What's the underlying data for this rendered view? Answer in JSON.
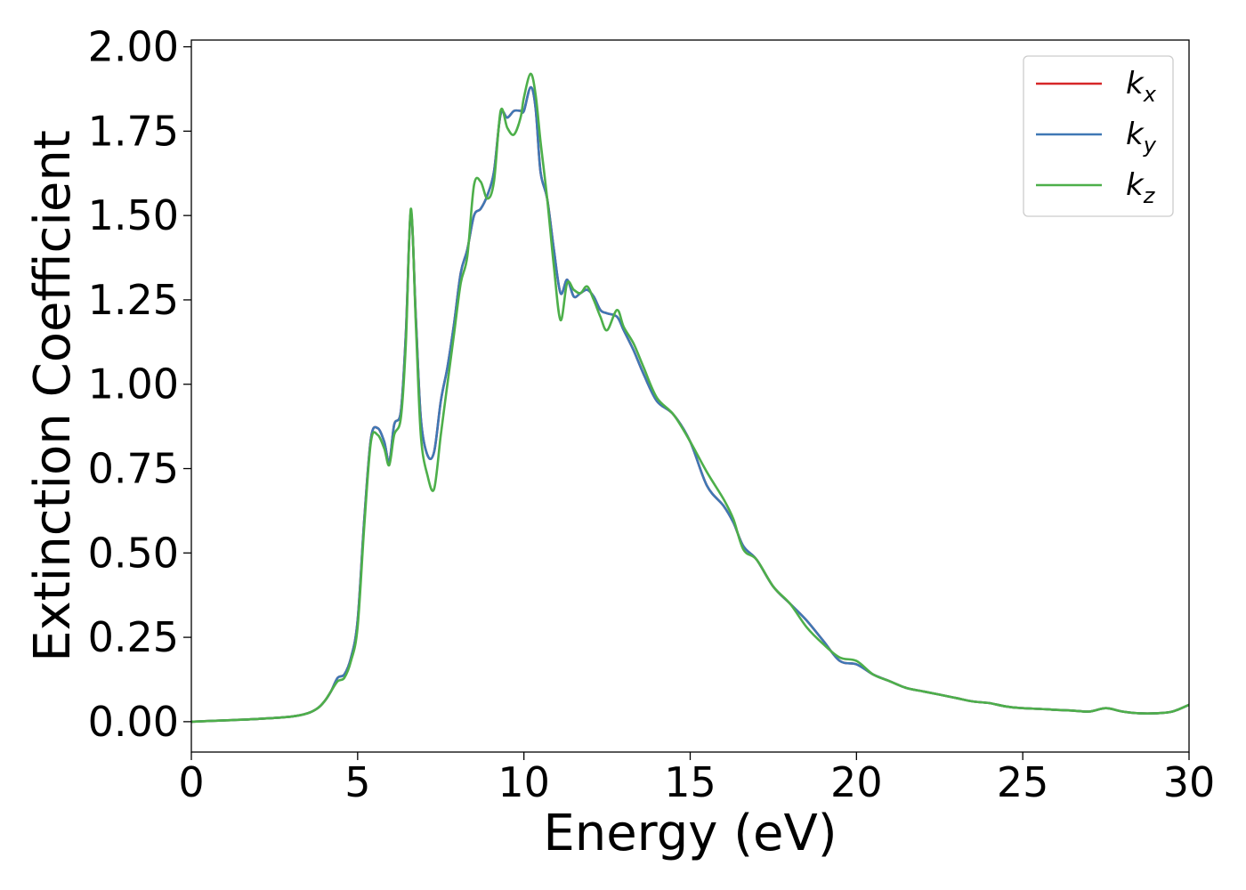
{
  "chart_data": {
    "type": "line",
    "title": "",
    "xlabel": "Energy (eV)",
    "ylabel": "Extinction Coefficient",
    "xlim": [
      0,
      30
    ],
    "ylim": [
      -0.09,
      2.02
    ],
    "xticks": [
      0,
      5,
      10,
      15,
      20,
      25,
      30
    ],
    "xtick_labels": [
      "0",
      "5",
      "10",
      "15",
      "20",
      "25",
      "30"
    ],
    "yticks": [
      0,
      0.25,
      0.5,
      0.75,
      1.0,
      1.25,
      1.5,
      1.75,
      2.0
    ],
    "ytick_labels": [
      "0.00",
      "0.25",
      "0.50",
      "0.75",
      "1.00",
      "1.25",
      "1.50",
      "1.75",
      "2.00"
    ],
    "grid": false,
    "legend_position": "top-right",
    "series": [
      {
        "name": "k",
        "subscript": "x",
        "color": "#d62728",
        "x": [
          0,
          1,
          2,
          3,
          3.5,
          3.8,
          4.0,
          4.2,
          4.4,
          4.6,
          4.8,
          5.0,
          5.2,
          5.4,
          5.6,
          5.8,
          5.95,
          6.1,
          6.3,
          6.45,
          6.6,
          6.75,
          6.9,
          7.1,
          7.3,
          7.5,
          7.7,
          7.9,
          8.1,
          8.3,
          8.5,
          8.7,
          8.9,
          9.1,
          9.3,
          9.5,
          9.7,
          9.9,
          10.0,
          10.2,
          10.35,
          10.5,
          10.7,
          10.9,
          11.1,
          11.3,
          11.5,
          11.7,
          11.9,
          12.1,
          12.3,
          12.5,
          12.8,
          13.0,
          13.3,
          13.6,
          14.0,
          14.5,
          15.0,
          15.5,
          16.0,
          16.3,
          16.6,
          17.0,
          17.5,
          18.0,
          18.5,
          19.0,
          19.5,
          20.0,
          20.5,
          21.0,
          21.5,
          22.0,
          22.5,
          23.0,
          23.5,
          24.0,
          24.5,
          25.0,
          25.5,
          26.0,
          26.5,
          27.0,
          27.5,
          28.0,
          28.5,
          29.0,
          29.5,
          30.0
        ],
        "y": [
          0.0,
          0.004,
          0.008,
          0.015,
          0.025,
          0.04,
          0.06,
          0.09,
          0.13,
          0.14,
          0.19,
          0.3,
          0.6,
          0.84,
          0.87,
          0.83,
          0.77,
          0.88,
          0.92,
          1.15,
          1.51,
          1.2,
          0.9,
          0.79,
          0.8,
          0.95,
          1.05,
          1.18,
          1.33,
          1.4,
          1.5,
          1.52,
          1.56,
          1.63,
          1.8,
          1.79,
          1.81,
          1.81,
          1.81,
          1.88,
          1.82,
          1.63,
          1.55,
          1.4,
          1.27,
          1.31,
          1.26,
          1.27,
          1.28,
          1.26,
          1.22,
          1.21,
          1.2,
          1.16,
          1.1,
          1.03,
          0.95,
          0.91,
          0.83,
          0.7,
          0.64,
          0.59,
          0.52,
          0.48,
          0.4,
          0.35,
          0.3,
          0.24,
          0.18,
          0.17,
          0.14,
          0.12,
          0.1,
          0.09,
          0.08,
          0.07,
          0.06,
          0.055,
          0.045,
          0.04,
          0.038,
          0.035,
          0.033,
          0.03,
          0.04,
          0.03,
          0.025,
          0.025,
          0.03,
          0.05
        ]
      },
      {
        "name": "k",
        "subscript": "y",
        "color": "#3f78b5",
        "x": [
          0,
          1,
          2,
          3,
          3.5,
          3.8,
          4.0,
          4.2,
          4.4,
          4.6,
          4.8,
          5.0,
          5.2,
          5.4,
          5.6,
          5.8,
          5.95,
          6.1,
          6.3,
          6.45,
          6.6,
          6.75,
          6.9,
          7.1,
          7.3,
          7.5,
          7.7,
          7.9,
          8.1,
          8.3,
          8.5,
          8.7,
          8.9,
          9.1,
          9.3,
          9.5,
          9.7,
          9.9,
          10.0,
          10.2,
          10.35,
          10.5,
          10.7,
          10.9,
          11.1,
          11.3,
          11.5,
          11.7,
          11.9,
          12.1,
          12.3,
          12.5,
          12.8,
          13.0,
          13.3,
          13.6,
          14.0,
          14.5,
          15.0,
          15.5,
          16.0,
          16.3,
          16.6,
          17.0,
          17.5,
          18.0,
          18.5,
          19.0,
          19.5,
          20.0,
          20.5,
          21.0,
          21.5,
          22.0,
          22.5,
          23.0,
          23.5,
          24.0,
          24.5,
          25.0,
          25.5,
          26.0,
          26.5,
          27.0,
          27.5,
          28.0,
          28.5,
          29.0,
          29.5,
          30.0
        ],
        "y": [
          0.0,
          0.004,
          0.008,
          0.015,
          0.025,
          0.04,
          0.06,
          0.09,
          0.13,
          0.14,
          0.19,
          0.3,
          0.6,
          0.84,
          0.87,
          0.83,
          0.77,
          0.88,
          0.92,
          1.15,
          1.51,
          1.2,
          0.9,
          0.79,
          0.8,
          0.95,
          1.05,
          1.18,
          1.33,
          1.4,
          1.5,
          1.52,
          1.56,
          1.63,
          1.8,
          1.79,
          1.81,
          1.81,
          1.81,
          1.88,
          1.82,
          1.63,
          1.55,
          1.4,
          1.27,
          1.31,
          1.26,
          1.27,
          1.28,
          1.26,
          1.22,
          1.21,
          1.2,
          1.16,
          1.1,
          1.03,
          0.95,
          0.91,
          0.83,
          0.7,
          0.64,
          0.59,
          0.52,
          0.48,
          0.4,
          0.35,
          0.3,
          0.24,
          0.18,
          0.17,
          0.14,
          0.12,
          0.1,
          0.09,
          0.08,
          0.07,
          0.06,
          0.055,
          0.045,
          0.04,
          0.038,
          0.035,
          0.033,
          0.03,
          0.04,
          0.03,
          0.025,
          0.025,
          0.03,
          0.05
        ]
      },
      {
        "name": "k",
        "subscript": "z",
        "color": "#4daf4a",
        "x": [
          0,
          1,
          2,
          3,
          3.5,
          3.8,
          4.0,
          4.2,
          4.4,
          4.6,
          4.8,
          5.0,
          5.2,
          5.4,
          5.6,
          5.8,
          5.95,
          6.1,
          6.3,
          6.45,
          6.6,
          6.75,
          6.9,
          7.1,
          7.3,
          7.5,
          7.7,
          7.9,
          8.1,
          8.3,
          8.5,
          8.7,
          8.9,
          9.1,
          9.3,
          9.5,
          9.7,
          9.9,
          10.0,
          10.2,
          10.35,
          10.5,
          10.7,
          10.9,
          11.1,
          11.3,
          11.5,
          11.7,
          11.9,
          12.1,
          12.3,
          12.5,
          12.8,
          13.0,
          13.3,
          13.6,
          14.0,
          14.5,
          15.0,
          15.5,
          16.0,
          16.3,
          16.6,
          17.0,
          17.5,
          18.0,
          18.5,
          19.0,
          19.5,
          20.0,
          20.5,
          21.0,
          21.5,
          22.0,
          22.5,
          23.0,
          23.5,
          24.0,
          24.5,
          25.0,
          25.5,
          26.0,
          26.5,
          27.0,
          27.5,
          28.0,
          28.5,
          29.0,
          29.5,
          30.0
        ],
        "y": [
          0.0,
          0.004,
          0.008,
          0.015,
          0.025,
          0.04,
          0.06,
          0.09,
          0.12,
          0.13,
          0.18,
          0.28,
          0.58,
          0.83,
          0.85,
          0.81,
          0.76,
          0.85,
          0.9,
          1.12,
          1.52,
          1.18,
          0.85,
          0.73,
          0.69,
          0.85,
          1.0,
          1.15,
          1.3,
          1.38,
          1.59,
          1.6,
          1.55,
          1.6,
          1.81,
          1.76,
          1.74,
          1.79,
          1.85,
          1.92,
          1.86,
          1.72,
          1.55,
          1.35,
          1.19,
          1.3,
          1.28,
          1.27,
          1.29,
          1.25,
          1.2,
          1.16,
          1.22,
          1.17,
          1.12,
          1.05,
          0.96,
          0.91,
          0.83,
          0.74,
          0.66,
          0.6,
          0.51,
          0.48,
          0.4,
          0.35,
          0.28,
          0.23,
          0.19,
          0.18,
          0.14,
          0.12,
          0.1,
          0.09,
          0.08,
          0.07,
          0.06,
          0.055,
          0.045,
          0.04,
          0.038,
          0.035,
          0.033,
          0.03,
          0.04,
          0.03,
          0.025,
          0.025,
          0.03,
          0.05
        ]
      }
    ]
  }
}
